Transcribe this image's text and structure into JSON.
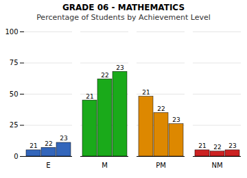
{
  "chart_data": {
    "type": "bar",
    "title": "GRADE 06 - MATHEMATICS",
    "subtitle": "Percentage of Students by Achievement Level",
    "categories": [
      "E",
      "M",
      "PM",
      "NM"
    ],
    "series": [
      {
        "name": "21",
        "values": [
          5,
          45,
          48,
          5
        ]
      },
      {
        "name": "22",
        "values": [
          7,
          62,
          35,
          4
        ]
      },
      {
        "name": "23",
        "values": [
          11,
          68,
          26,
          5
        ]
      }
    ],
    "colors": [
      "#3366bb",
      "#1aaa1a",
      "#dd8800",
      "#cc2222"
    ],
    "ylim": [
      0,
      100
    ],
    "yticks": [
      0,
      25,
      50,
      75,
      100
    ],
    "grid": true
  }
}
